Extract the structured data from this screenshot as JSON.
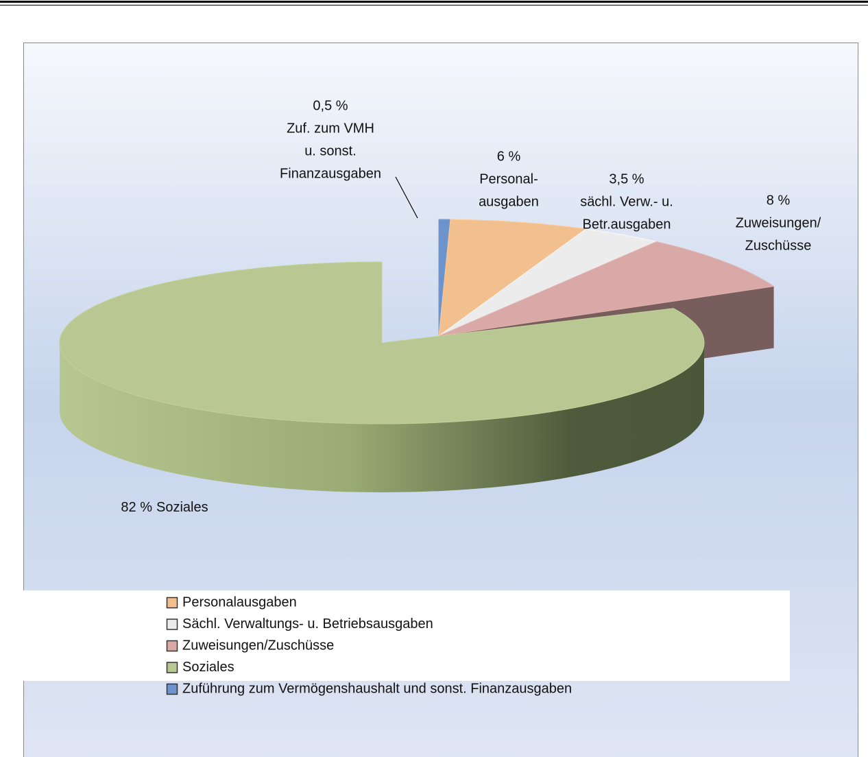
{
  "chart_data": {
    "type": "pie",
    "categories": [
      "Personalausgaben",
      "Sächl. Verwaltungs- u. Betriebsausgaben",
      "Zuweisungen/Zuschüsse",
      "Soziales",
      "Zuführung zum Vermögenshaushalt und sonst. Finanzausgaben"
    ],
    "values": [
      6,
      3.5,
      8,
      82,
      0.5
    ],
    "value_labels": [
      "6 %",
      "3,5 %",
      "8 %",
      "82 %",
      "0,5 %"
    ],
    "data_labels": [
      [
        "Personal-",
        "ausgaben"
      ],
      [
        "sächl. Verw.- u.",
        "Betr.ausgaben"
      ],
      [
        "Zuweisungen/",
        "Zuschüsse"
      ],
      [
        "Soziales"
      ],
      [
        "Zuf. zum VMH",
        "u. sonst.",
        "Finanzausgaben"
      ]
    ],
    "colors": [
      "#f2c08e",
      "#ececec",
      "#d9a9a7",
      "#b9c893",
      "#6d93cc"
    ],
    "legend": "bottom"
  }
}
